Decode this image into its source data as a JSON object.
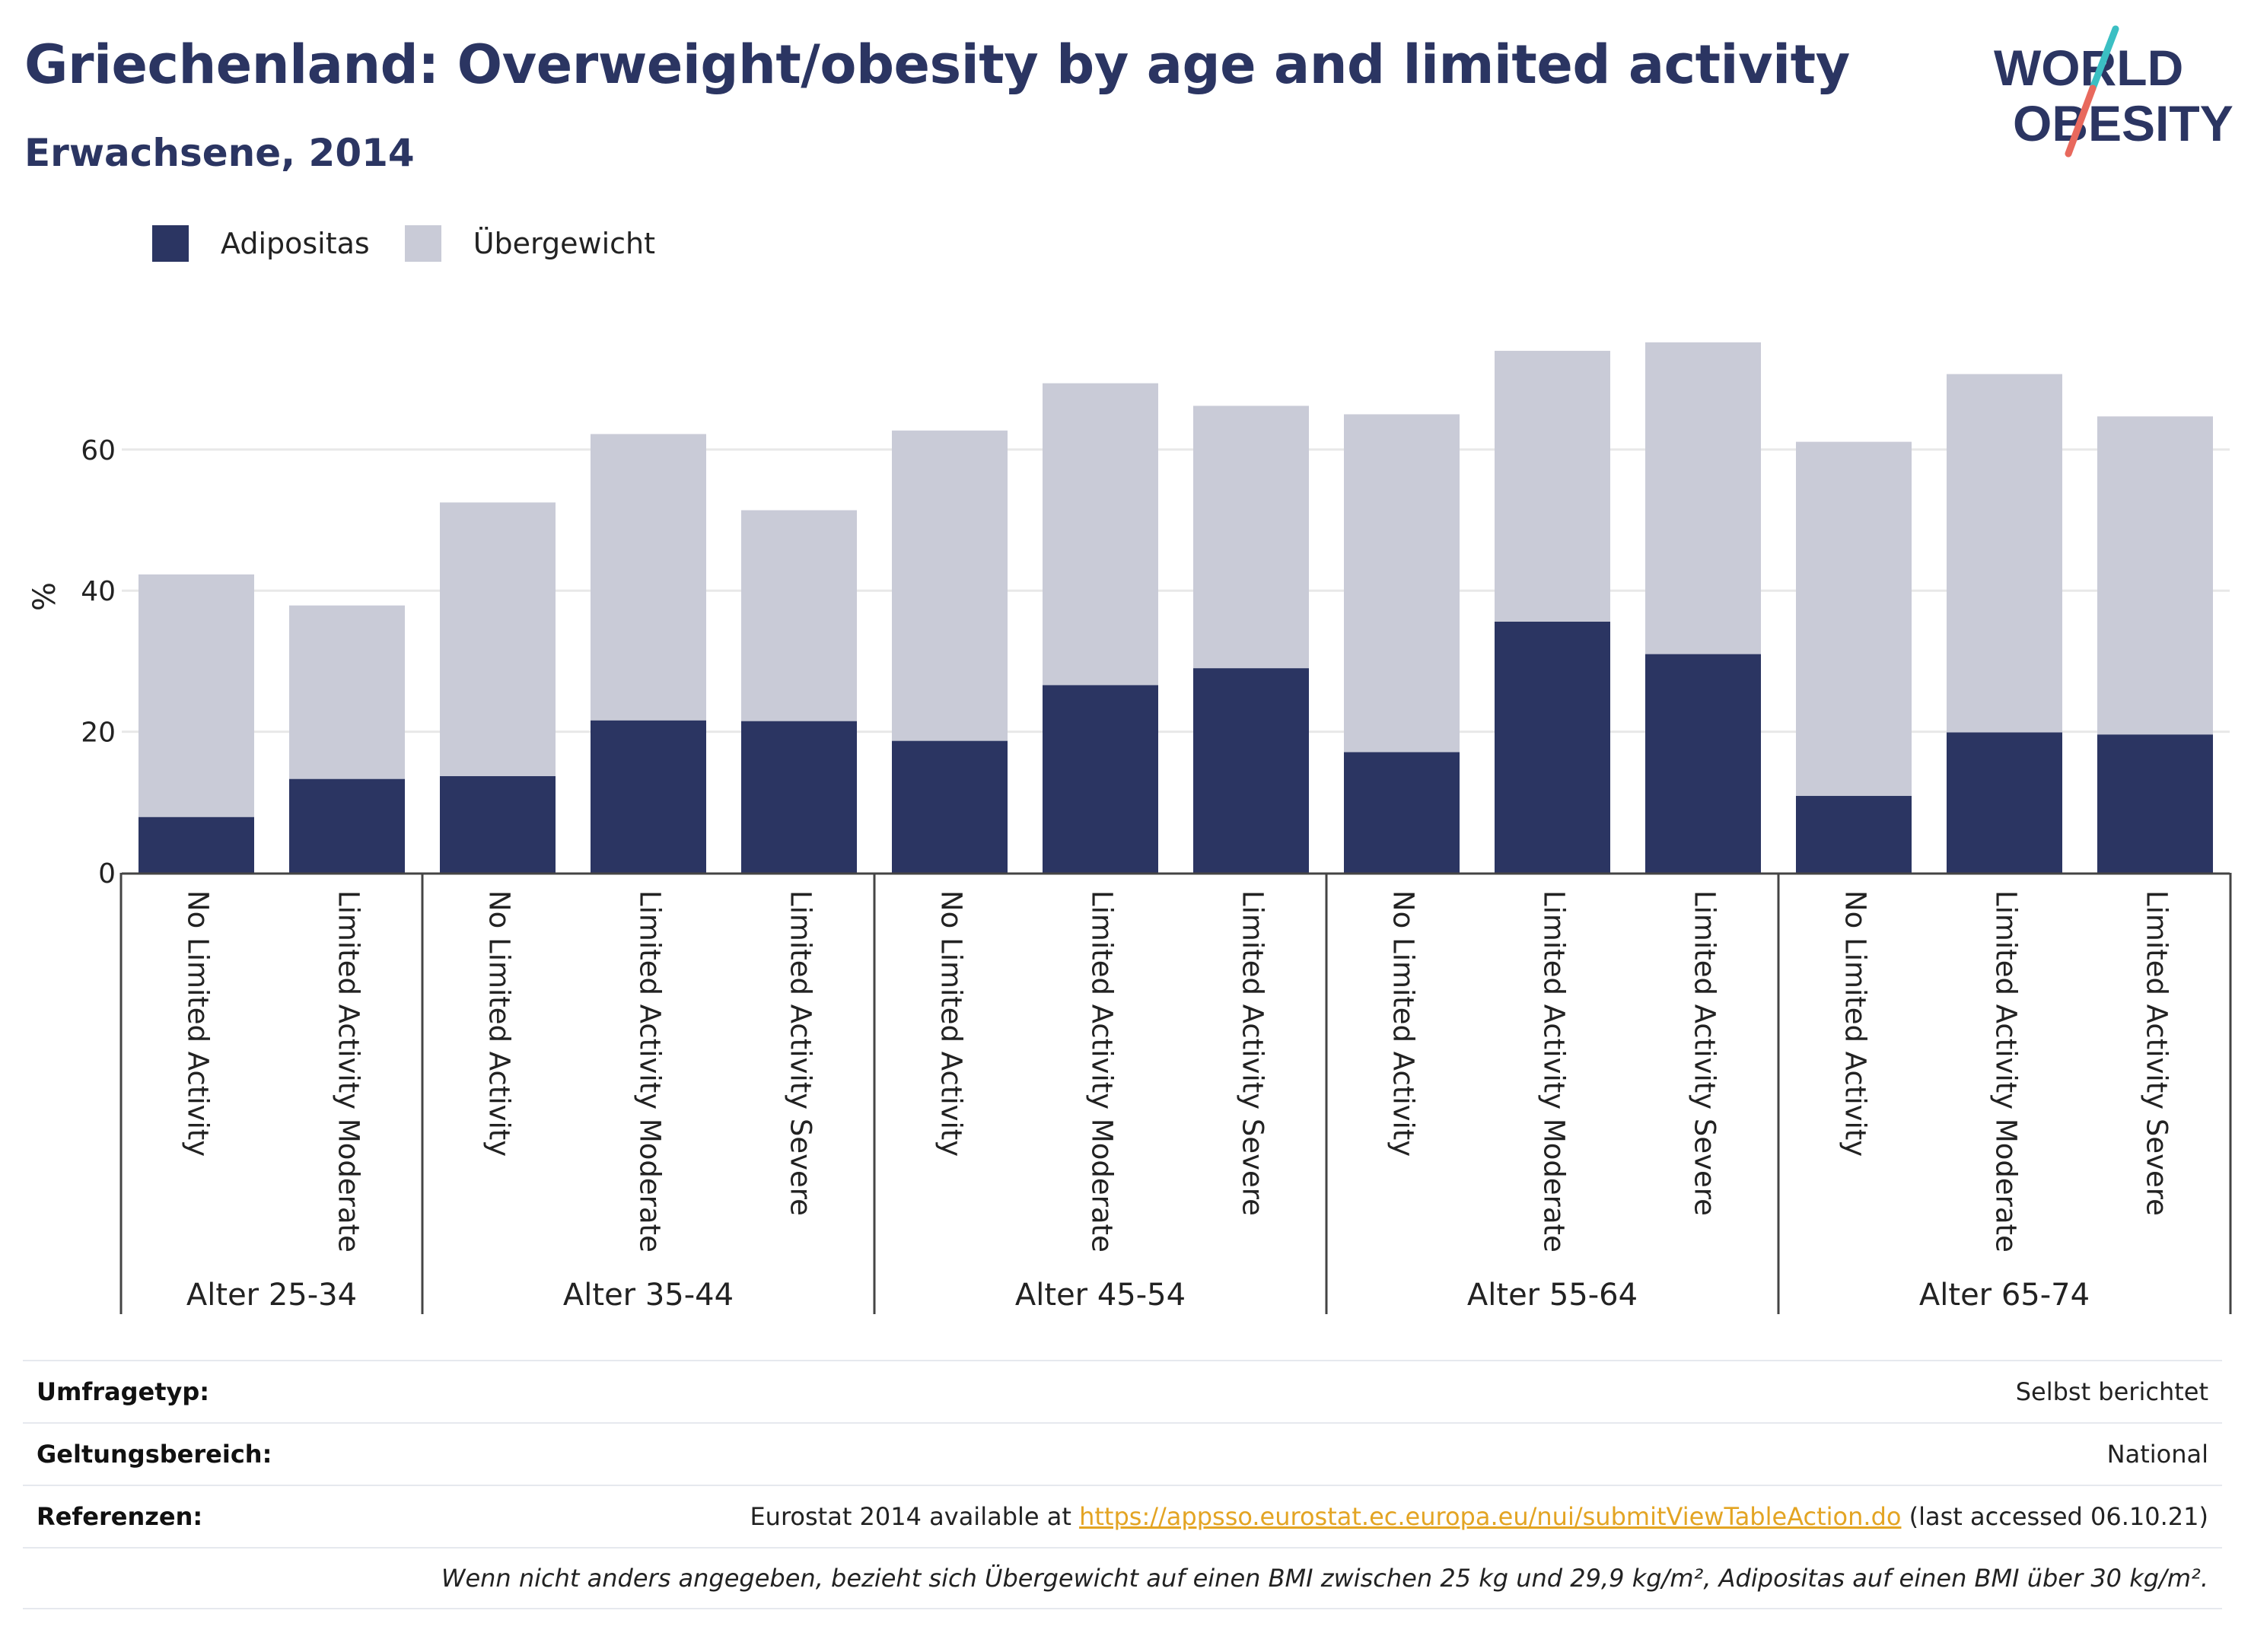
{
  "header": {
    "title": "Griechenland: Overweight/obesity by age and limited activity",
    "subtitle": "Erwachsene, 2014"
  },
  "logo": {
    "text": "WORLD OBESITY",
    "line1": "WORLD",
    "line2": "OBESITY"
  },
  "colors": {
    "obesity": "#2b3562",
    "overweight": "#c9cbd7",
    "brand": "#2b3562",
    "accent_teal": "#3bbfc3",
    "accent_red": "#e8695d",
    "link": "#e3a423"
  },
  "legend": {
    "obesity_label": "Adipositas",
    "overweight_label": "Übergewicht"
  },
  "chart_data": {
    "type": "bar",
    "stacked": true,
    "ylabel": "%",
    "ylim": [
      0,
      80
    ],
    "yticks": [
      0,
      20,
      40,
      60
    ],
    "grid": true,
    "legend_position": "top-left",
    "groups": [
      {
        "label": "Alter 25-34",
        "categories": [
          "No Limited Activity",
          "Limited Activity Moderate"
        ]
      },
      {
        "label": "Alter 35-44",
        "categories": [
          "No Limited Activity",
          "Limited Activity Moderate",
          "Limited Activity Severe"
        ]
      },
      {
        "label": "Alter 45-54",
        "categories": [
          "No Limited Activity",
          "Limited Activity Moderate",
          "Limited Activity Severe"
        ]
      },
      {
        "label": "Alter 55-64",
        "categories": [
          "No Limited Activity",
          "Limited Activity Moderate",
          "Limited Activity Severe"
        ]
      },
      {
        "label": "Alter 65-74",
        "categories": [
          "No Limited Activity",
          "Limited Activity Moderate",
          "Limited Activity Severe"
        ]
      }
    ],
    "series": [
      {
        "name": "Adipositas",
        "values": [
          7.9,
          13.3,
          13.7,
          21.6,
          21.5,
          18.7,
          26.6,
          29.0,
          17.1,
          35.6,
          31.0,
          10.9,
          19.9,
          19.6
        ]
      },
      {
        "name": "Übergewicht",
        "values": [
          34.4,
          24.6,
          38.8,
          40.6,
          29.9,
          44.0,
          42.8,
          37.2,
          47.9,
          38.4,
          44.2,
          50.2,
          50.8,
          45.1
        ]
      }
    ]
  },
  "info_table": {
    "survey_type": {
      "label": "Umfragetyp:",
      "value": "Selbst berichtet"
    },
    "coverage": {
      "label": "Geltungsbereich:",
      "value": "National"
    },
    "references": {
      "label": "Referenzen:",
      "prefix": "Eurostat 2014 available at ",
      "link": "https://appsso.eurostat.ec.europa.eu/nui/submitViewTableAction.do",
      "suffix": " (last accessed 06.10.21)"
    },
    "note": "Wenn nicht anders angegeben, bezieht sich Übergewicht auf einen BMI zwischen 25 kg und 29,9 kg/m², Adipositas auf einen BMI über 30 kg/m²."
  }
}
